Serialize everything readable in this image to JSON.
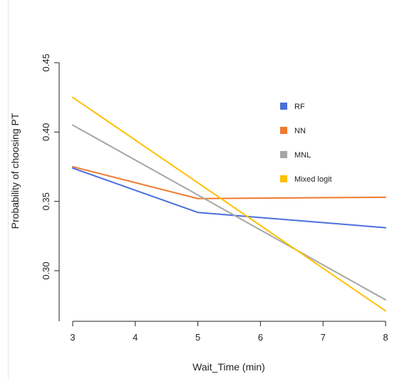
{
  "chart_data": {
    "type": "line",
    "title": "",
    "xlabel": "Wait_Time (min)",
    "ylabel": "Probability of choosing PT",
    "xlim": [
      3,
      8
    ],
    "ylim": [
      0.27,
      0.45
    ],
    "x_ticks": [
      3,
      4,
      5,
      6,
      7,
      8
    ],
    "y_ticks": [
      "0.30",
      "0.35",
      "0.40",
      "0.45"
    ],
    "grid": false,
    "legend_position": "right",
    "series": [
      {
        "name": "RF",
        "color": "#4a6fdc",
        "x": [
          3,
          5,
          8
        ],
        "y": [
          0.374,
          0.342,
          0.331
        ]
      },
      {
        "name": "NN",
        "color": "#f07a2e",
        "x": [
          3,
          5,
          8
        ],
        "y": [
          0.375,
          0.352,
          0.353
        ]
      },
      {
        "name": "MNL",
        "color": "#a6a6a6",
        "x": [
          3,
          8
        ],
        "y": [
          0.405,
          0.279
        ]
      },
      {
        "name": "Mixed logit",
        "color": "#ffc000",
        "x": [
          3,
          8
        ],
        "y": [
          0.425,
          0.271
        ]
      }
    ]
  }
}
